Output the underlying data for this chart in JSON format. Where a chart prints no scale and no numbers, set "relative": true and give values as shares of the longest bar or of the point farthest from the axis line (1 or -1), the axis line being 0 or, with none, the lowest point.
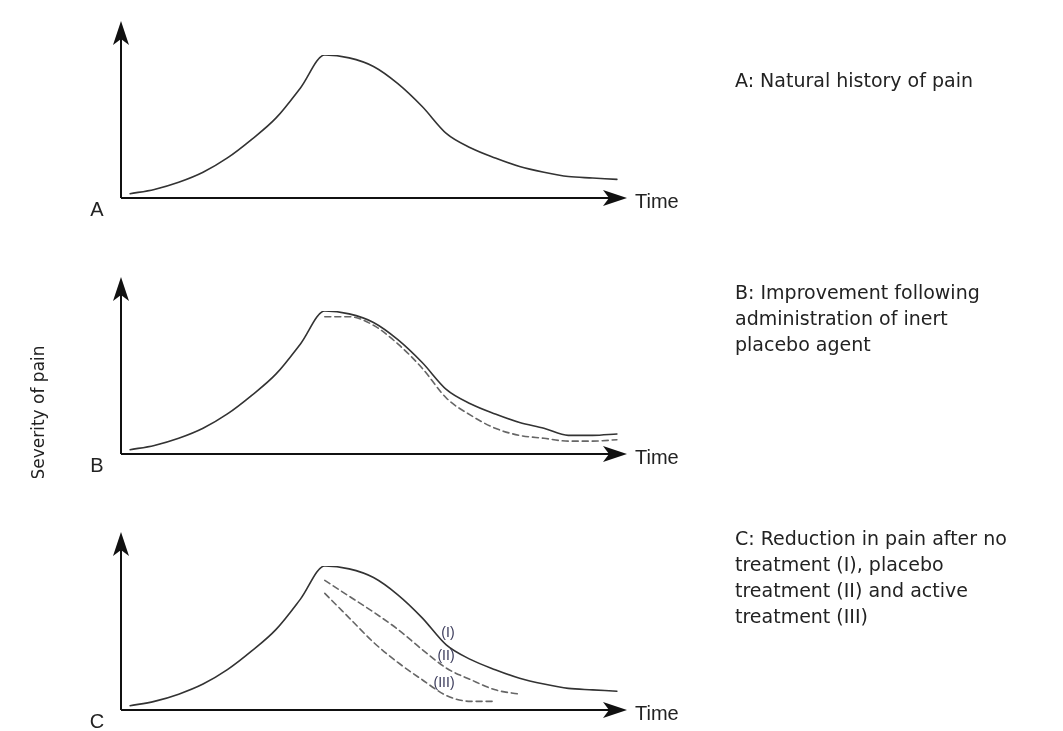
{
  "chart_data": [
    {
      "type": "line",
      "title": "A",
      "annotations": [
        "A: Natural history of pain"
      ],
      "xlabel": "Time",
      "relative": true,
      "marker": "none",
      "tick_labels": false,
      "categories": [
        null,
        null,
        null,
        null,
        null,
        null,
        null,
        null,
        null,
        null,
        null,
        null,
        null,
        null,
        null,
        null,
        null,
        null,
        null,
        null,
        null
      ],
      "series": [
        {
          "color": "#333333",
          "line_style": "solid",
          "values": [
            0.03,
            0.06,
            0.11,
            0.18,
            0.28,
            0.41,
            0.56,
            0.77,
            1,
            0.98,
            0.92,
            0.8,
            0.64,
            0.45,
            0.35,
            0.28,
            0.22,
            0.18,
            0.15,
            0.14,
            0.13
          ]
        }
      ]
    },
    {
      "type": "line",
      "title": "B",
      "annotations": [
        "B: Improvement following administration of inert placebo agent"
      ],
      "xlabel": "Time",
      "ylabel": "Severity of pain",
      "relative": true,
      "marker": "none",
      "tick_labels": false,
      "categories": [
        null,
        null,
        null,
        null,
        null,
        null,
        null,
        null,
        null,
        null,
        null,
        null,
        null,
        null,
        null,
        null,
        null,
        null,
        null,
        null,
        null
      ],
      "series": [
        {
          "color": "#333333",
          "line_style": "solid",
          "values": [
            0.03,
            0.06,
            0.11,
            0.18,
            0.28,
            0.41,
            0.56,
            0.77,
            1,
            0.98,
            0.92,
            0.8,
            0.64,
            0.45,
            0.35,
            0.28,
            0.22,
            0.18,
            0.13,
            0.13,
            0.14
          ]
        },
        {
          "color": "#666666",
          "line_style": "dashed",
          "values": [
            null,
            null,
            null,
            null,
            null,
            null,
            null,
            null,
            0.96,
            0.96,
            0.9,
            0.77,
            0.6,
            0.39,
            0.27,
            0.18,
            0.13,
            0.11,
            0.09,
            0.09,
            0.1
          ]
        }
      ]
    },
    {
      "type": "line",
      "title": "C",
      "annotations": [
        "C: Reduction in pain after no treatment (I), placebo treatment (II) and active treatment (III)"
      ],
      "xlabel": "Time",
      "relative": true,
      "marker": "none",
      "tick_labels": false,
      "categories": [
        null,
        null,
        null,
        null,
        null,
        null,
        null,
        null,
        null,
        null,
        null,
        null,
        null,
        null,
        null,
        null,
        null,
        null,
        null,
        null,
        null
      ],
      "series": [
        {
          "name": "(I)",
          "color": "#333333",
          "line_style": "solid",
          "values": [
            0.03,
            0.06,
            0.11,
            0.18,
            0.28,
            0.41,
            0.56,
            0.77,
            1,
            0.98,
            0.92,
            0.8,
            0.64,
            0.45,
            0.35,
            0.28,
            0.22,
            0.18,
            0.15,
            0.14,
            0.13
          ]
        },
        {
          "name": "(II)",
          "color": "#666666",
          "line_style": "dashed",
          "values": [
            null,
            null,
            null,
            null,
            null,
            null,
            null,
            null,
            0.9,
            0.79,
            0.68,
            0.56,
            0.42,
            0.29,
            0.21,
            0.14,
            0.11,
            null,
            null,
            null,
            null
          ]
        },
        {
          "name": "(III)",
          "color": "#666666",
          "line_style": "dashed",
          "values": [
            null,
            null,
            null,
            null,
            null,
            null,
            null,
            null,
            0.81,
            0.64,
            0.47,
            0.33,
            0.21,
            0.1,
            0.06,
            0.06,
            null,
            null,
            null,
            null,
            null
          ]
        }
      ]
    }
  ]
}
